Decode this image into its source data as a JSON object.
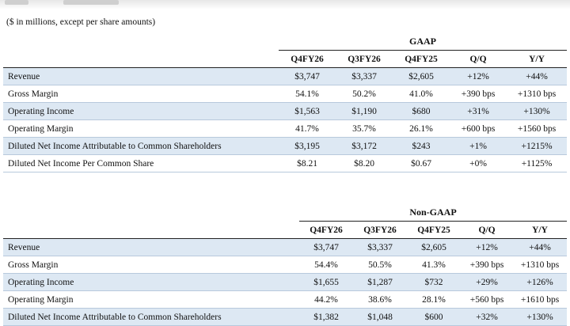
{
  "subtitle": "($ in millions, except per share amounts)",
  "gaap": {
    "group_label": "GAAP",
    "columns": [
      "Q4FY26",
      "Q3FY26",
      "Q4FY25",
      "Q/Q",
      "Y/Y"
    ],
    "rows": [
      {
        "label": "Revenue",
        "values": [
          "$3,747",
          "$3,337",
          "$2,605",
          "+12%",
          "+44%"
        ]
      },
      {
        "label": "Gross Margin",
        "values": [
          "54.1%",
          "50.2%",
          "41.0%",
          "+390 bps",
          "+1310 bps"
        ]
      },
      {
        "label": "Operating Income",
        "values": [
          "$1,563",
          "$1,190",
          "$680",
          "+31%",
          "+130%"
        ]
      },
      {
        "label": "Operating Margin",
        "values": [
          "41.7%",
          "35.7%",
          "26.1%",
          "+600 bps",
          "+1560 bps"
        ]
      },
      {
        "label": "Diluted Net Income Attributable to Common Shareholders",
        "values": [
          "$3,195",
          "$3,172",
          "$243",
          "+1%",
          "+1215%"
        ]
      },
      {
        "label": "Diluted Net Income Per Common Share",
        "values": [
          "$8.21",
          "$8.20",
          "$0.67",
          "+0%",
          "+1125%"
        ]
      }
    ]
  },
  "nongaap": {
    "group_label": "Non-GAAP",
    "columns": [
      "Q4FY26",
      "Q3FY26",
      "Q4FY25",
      "Q/Q",
      "Y/Y"
    ],
    "rows": [
      {
        "label": "Revenue",
        "values": [
          "$3,747",
          "$3,337",
          "$2,605",
          "+12%",
          "+44%"
        ]
      },
      {
        "label": "Gross Margin",
        "values": [
          "54.4%",
          "50.5%",
          "41.3%",
          "+390 bps",
          "+1310 bps"
        ]
      },
      {
        "label": "Operating Income",
        "values": [
          "$1,655",
          "$1,287",
          "$732",
          "+29%",
          "+126%"
        ]
      },
      {
        "label": "Operating Margin",
        "values": [
          "44.2%",
          "38.6%",
          "28.1%",
          "+560 bps",
          "+1610 bps"
        ]
      },
      {
        "label": "Diluted Net Income Attributable to Common Shareholders",
        "values": [
          "$1,382",
          "$1,048",
          "$600",
          "+32%",
          "+130%"
        ]
      }
    ]
  },
  "colors": {
    "row_shade": "#dde8f3",
    "rule": "#222222"
  }
}
